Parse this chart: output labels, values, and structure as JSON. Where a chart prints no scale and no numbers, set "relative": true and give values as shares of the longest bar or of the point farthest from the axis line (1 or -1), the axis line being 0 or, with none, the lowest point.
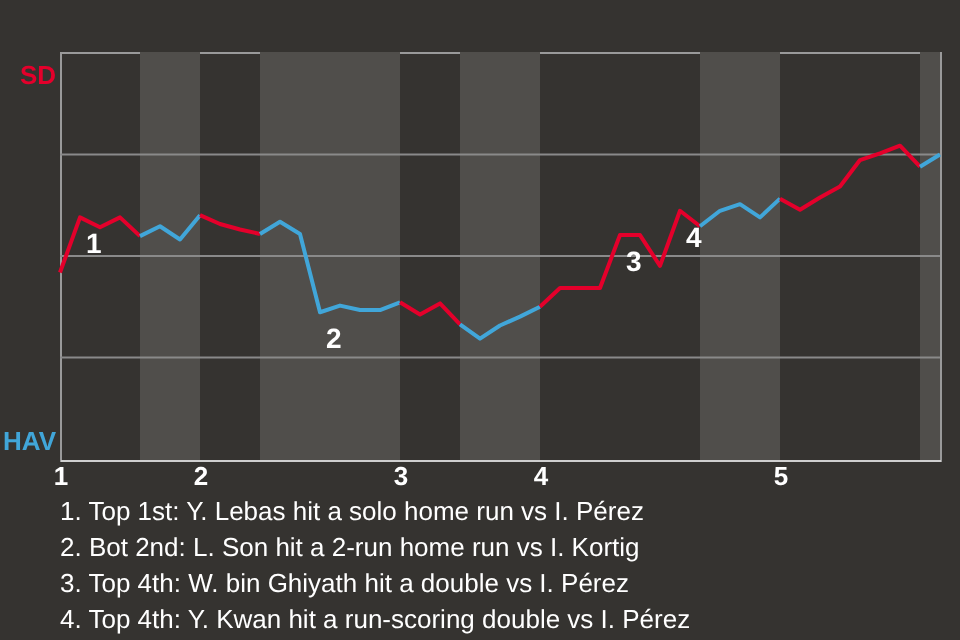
{
  "chart_data": {
    "type": "line",
    "relative": true,
    "marker": "none",
    "line_style": "solid",
    "ref_lines": [
      {
        "axis": "y",
        "value": 0.92,
        "color": "#8a8a8a"
      },
      {
        "axis": "y",
        "value": 0,
        "color": "#8a8a8a"
      },
      {
        "axis": "y",
        "value": -0.92,
        "color": "#8a8a8a"
      }
    ],
    "categories": [
      "1",
      null,
      null,
      null,
      null,
      null,
      null,
      "2",
      null,
      null,
      null,
      null,
      null,
      null,
      null,
      null,
      null,
      "3",
      null,
      null,
      null,
      null,
      null,
      null,
      "4",
      null,
      null,
      null,
      null,
      null,
      null,
      null,
      null,
      null,
      null,
      null,
      "5",
      null,
      null,
      null,
      null,
      null,
      null,
      null,
      null
    ],
    "series": [
      {
        "color": "#e4002b",
        "values": [
          -0.15,
          0.35,
          0.26,
          0.35,
          0.18,
          null,
          null,
          null,
          null,
          null,
          null,
          null,
          null,
          null,
          null,
          null,
          null,
          null,
          null,
          null,
          null,
          null,
          null,
          null,
          null,
          null,
          null,
          null,
          null,
          null,
          null,
          null,
          null,
          null,
          null,
          null,
          null,
          null,
          null,
          null,
          null,
          null,
          null,
          null,
          null
        ]
      },
      {
        "color": "#41a6d9",
        "values": [
          null,
          null,
          null,
          null,
          0.18,
          0.27,
          0.15,
          0.37,
          null,
          null,
          null,
          null,
          null,
          null,
          null,
          null,
          null,
          null,
          null,
          null,
          null,
          null,
          null,
          null,
          null,
          null,
          null,
          null,
          null,
          null,
          null,
          null,
          null,
          null,
          null,
          null,
          null,
          null,
          null,
          null,
          null,
          null,
          null,
          null,
          null
        ]
      },
      {
        "color": "#e4002b",
        "values": [
          null,
          null,
          null,
          null,
          null,
          null,
          null,
          0.37,
          0.29,
          0.24,
          0.2,
          null,
          null,
          null,
          null,
          null,
          null,
          null,
          null,
          null,
          null,
          null,
          null,
          null,
          null,
          null,
          null,
          null,
          null,
          null,
          null,
          null,
          null,
          null,
          null,
          null,
          null,
          null,
          null,
          null,
          null,
          null,
          null,
          null,
          null
        ]
      },
      {
        "color": "#41a6d9",
        "values": [
          null,
          null,
          null,
          null,
          null,
          null,
          null,
          null,
          null,
          null,
          0.2,
          0.31,
          0.2,
          -0.51,
          -0.45,
          -0.49,
          -0.49,
          -0.42,
          null,
          null,
          null,
          null,
          null,
          null,
          null,
          null,
          null,
          null,
          null,
          null,
          null,
          null,
          null,
          null,
          null,
          null,
          null,
          null,
          null,
          null,
          null,
          null,
          null,
          null,
          null
        ]
      },
      {
        "color": "#e4002b",
        "values": [
          null,
          null,
          null,
          null,
          null,
          null,
          null,
          null,
          null,
          null,
          null,
          null,
          null,
          null,
          null,
          null,
          null,
          -0.42,
          -0.53,
          -0.43,
          -0.62,
          null,
          null,
          null,
          null,
          null,
          null,
          null,
          null,
          null,
          null,
          null,
          null,
          null,
          null,
          null,
          null,
          null,
          null,
          null,
          null,
          null,
          null,
          null,
          null
        ]
      },
      {
        "color": "#41a6d9",
        "values": [
          null,
          null,
          null,
          null,
          null,
          null,
          null,
          null,
          null,
          null,
          null,
          null,
          null,
          null,
          null,
          null,
          null,
          null,
          null,
          null,
          -0.62,
          -0.75,
          -0.63,
          -0.55,
          -0.46,
          null,
          null,
          null,
          null,
          null,
          null,
          null,
          null,
          null,
          null,
          null,
          null,
          null,
          null,
          null,
          null,
          null,
          null,
          null,
          null
        ]
      },
      {
        "color": "#e4002b",
        "values": [
          null,
          null,
          null,
          null,
          null,
          null,
          null,
          null,
          null,
          null,
          null,
          null,
          null,
          null,
          null,
          null,
          null,
          null,
          null,
          null,
          null,
          null,
          null,
          null,
          -0.46,
          -0.29,
          -0.29,
          -0.29,
          0.19,
          0.19,
          -0.09,
          0.41,
          0.27,
          null,
          null,
          null,
          null,
          null,
          null,
          null,
          null,
          null,
          null,
          null,
          null
        ]
      },
      {
        "color": "#41a6d9",
        "values": [
          null,
          null,
          null,
          null,
          null,
          null,
          null,
          null,
          null,
          null,
          null,
          null,
          null,
          null,
          null,
          null,
          null,
          null,
          null,
          null,
          null,
          null,
          null,
          null,
          null,
          null,
          null,
          null,
          null,
          null,
          null,
          null,
          0.27,
          0.41,
          0.47,
          0.35,
          0.52,
          null,
          null,
          null,
          null,
          null,
          null,
          null,
          null
        ]
      },
      {
        "color": "#e4002b",
        "values": [
          null,
          null,
          null,
          null,
          null,
          null,
          null,
          null,
          null,
          null,
          null,
          null,
          null,
          null,
          null,
          null,
          null,
          null,
          null,
          null,
          null,
          null,
          null,
          null,
          null,
          null,
          null,
          null,
          null,
          null,
          null,
          null,
          null,
          null,
          null,
          null,
          0.52,
          0.42,
          0.53,
          0.63,
          0.87,
          0.93,
          1,
          0.81,
          null
        ]
      },
      {
        "color": "#41a6d9",
        "values": [
          null,
          null,
          null,
          null,
          null,
          null,
          null,
          null,
          null,
          null,
          null,
          null,
          null,
          null,
          null,
          null,
          null,
          null,
          null,
          null,
          null,
          null,
          null,
          null,
          null,
          null,
          null,
          null,
          null,
          null,
          null,
          null,
          null,
          null,
          null,
          null,
          null,
          null,
          null,
          null,
          null,
          null,
          null,
          0.81,
          0.92
        ]
      }
    ],
    "annotations": [
      "SD",
      "HAV",
      {
        "text": "1",
        "y": 0.35
      },
      {
        "text": "2",
        "y": -0.51
      },
      {
        "text": "3",
        "y": 0.19
      },
      {
        "text": "4",
        "y": 0.41
      },
      "1. Top 1st: Y. Lebas hit a solo home run vs I. Pérez",
      "2. Bot 2nd: L. Son hit a 2-run home run vs I. Kortig",
      "3. Top 4th: W. bin Ghiyath hit a double vs I. Pérez",
      "4. Top 4th: Y. Kwan hit a run-scoring double vs I. Pérez"
    ]
  }
}
